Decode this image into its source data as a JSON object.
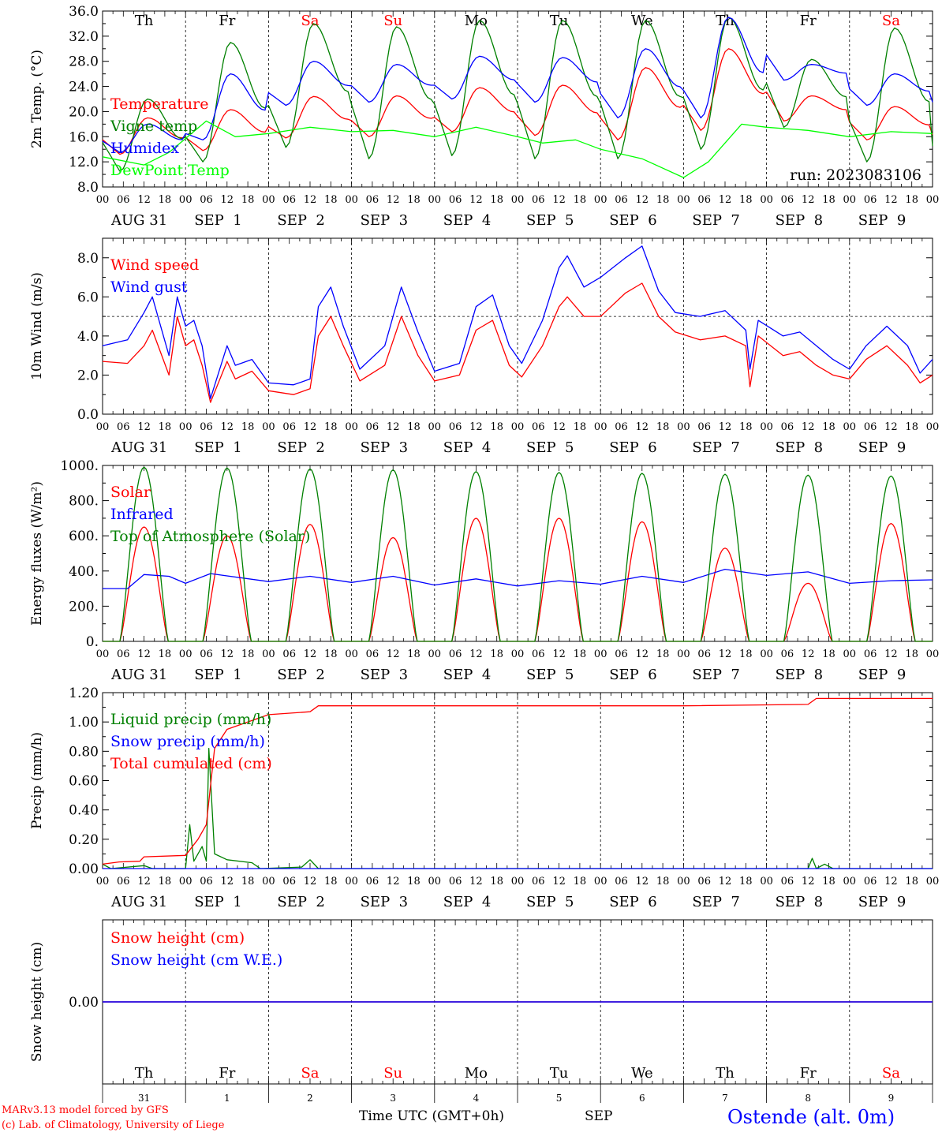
{
  "footer": {
    "credit1": "MARv3.13 model forced by GFS",
    "credit2": "(c) Lab. of Climatology, University of Liege",
    "xlabel": "Time UTC (GMT+0h)",
    "month": "SEP",
    "station": "Ostende (alt. 0m)"
  },
  "colors": {
    "red": "#ff0000",
    "green": "#008000",
    "blue": "#0000ff",
    "lime": "#00ff00",
    "purple": "#800080"
  },
  "time_axis": {
    "hour_ticks": [
      "00",
      "06",
      "12",
      "18"
    ],
    "date_labels": [
      "AUG 31",
      "SEP  1",
      "SEP  2",
      "SEP  3",
      "SEP  4",
      "SEP  5",
      "SEP  6",
      "SEP  7",
      "SEP  8",
      "SEP  9",
      "00"
    ],
    "weekdays": [
      "Th",
      "Fr",
      "Sa",
      "Su",
      "Mo",
      "Tu",
      "We",
      "Th",
      "Fr",
      "Sa"
    ],
    "weekend_flags": [
      false,
      false,
      true,
      true,
      false,
      false,
      false,
      false,
      false,
      true
    ],
    "day_numbers": [
      "31",
      "1",
      "2",
      "3",
      "4",
      "5",
      "6",
      "7",
      "8",
      "9"
    ]
  },
  "chart_data": [
    {
      "id": "temp",
      "type": "line",
      "ylabel": "2m Temp. (°C)",
      "ylim": [
        8,
        36
      ],
      "yticks": [
        "36.0",
        "32.0",
        "28.0",
        "24.0",
        "20.0",
        "16.0",
        "12.0",
        "8.0"
      ],
      "run_label": "run: 2023083106",
      "legend": [
        "Temperature",
        "Vigne temp",
        "Humidex",
        "DewPoint Temp"
      ],
      "series": [
        {
          "name": "Temperature",
          "color": "red",
          "mode": "sin",
          "min": [
            13.2,
            13.8,
            15.8,
            16.0,
            16.8,
            16.2,
            15.5,
            17.0,
            18.5,
            15.5
          ],
          "max": [
            19,
            20.3,
            22.4,
            22.5,
            23.8,
            24.2,
            27.0,
            30.0,
            22.5,
            20.8
          ],
          "end": 16.3
        },
        {
          "name": "Vigne temp",
          "color": "green",
          "mode": "sin",
          "min": [
            10.5,
            12.0,
            14.3,
            12.5,
            13.0,
            12.5,
            12.5,
            14.0,
            17.5,
            12.0
          ],
          "max": [
            22,
            31.0,
            34.0,
            33.5,
            34.5,
            34.5,
            34.5,
            35.0,
            28.3,
            33.3
          ],
          "end": 14.5
        },
        {
          "name": "Humidex",
          "color": "blue",
          "mode": "sin",
          "min": [
            13.5,
            15.5,
            21.0,
            21.5,
            22.0,
            21.5,
            19.0,
            19.0,
            25.0,
            21.0
          ],
          "max": [
            18,
            26.0,
            28.0,
            27.5,
            28.8,
            28.6,
            30.0,
            35.0,
            27.5,
            26.0
          ],
          "end": 21.5
        },
        {
          "name": "DewPoint Temp",
          "color": "lime",
          "mode": "pts",
          "pts": [
            [
              0,
              12.8
            ],
            [
              0.5,
              11.5
            ],
            [
              0.8,
              13.5
            ],
            [
              1.25,
              18.5
            ],
            [
              1.6,
              16.0
            ],
            [
              2.0,
              16.5
            ],
            [
              2.5,
              17.5
            ],
            [
              3.0,
              16.8
            ],
            [
              3.5,
              17.0
            ],
            [
              4.0,
              16.0
            ],
            [
              4.5,
              17.5
            ],
            [
              5.0,
              16.0
            ],
            [
              5.3,
              15.0
            ],
            [
              5.7,
              15.5
            ],
            [
              6.0,
              14.0
            ],
            [
              6.5,
              12.5
            ],
            [
              7.0,
              9.5
            ],
            [
              7.3,
              12.0
            ],
            [
              7.7,
              18.0
            ],
            [
              8.0,
              17.5
            ],
            [
              8.5,
              17.0
            ],
            [
              9.0,
              16.0
            ],
            [
              9.5,
              16.8
            ],
            [
              10.0,
              16.5
            ]
          ]
        }
      ]
    },
    {
      "id": "wind",
      "type": "line",
      "ylabel": "10m Wind (m/s)",
      "ylim": [
        0,
        9
      ],
      "yticks": [
        "8.0",
        "6.0",
        "4.0",
        "2.0",
        "0.0"
      ],
      "legend": [
        "Wind speed",
        "Wind gust"
      ],
      "reference_line": 5,
      "series": [
        {
          "name": "Wind speed",
          "color": "red",
          "mode": "pts",
          "pts": [
            [
              0,
              2.7
            ],
            [
              0.3,
              2.6
            ],
            [
              0.5,
              3.5
            ],
            [
              0.6,
              4.3
            ],
            [
              0.8,
              2.0
            ],
            [
              0.9,
              5.0
            ],
            [
              1.0,
              3.5
            ],
            [
              1.1,
              3.8
            ],
            [
              1.2,
              2.5
            ],
            [
              1.3,
              0.6
            ],
            [
              1.5,
              2.7
            ],
            [
              1.6,
              1.8
            ],
            [
              1.8,
              2.2
            ],
            [
              2.0,
              1.2
            ],
            [
              2.3,
              1.0
            ],
            [
              2.5,
              1.3
            ],
            [
              2.6,
              4.0
            ],
            [
              2.75,
              5.0
            ],
            [
              2.9,
              3.5
            ],
            [
              3.1,
              1.7
            ],
            [
              3.4,
              2.5
            ],
            [
              3.6,
              5.0
            ],
            [
              3.8,
              3.0
            ],
            [
              4.0,
              1.7
            ],
            [
              4.3,
              2.0
            ],
            [
              4.5,
              4.3
            ],
            [
              4.7,
              4.8
            ],
            [
              4.9,
              2.5
            ],
            [
              5.05,
              1.9
            ],
            [
              5.3,
              3.5
            ],
            [
              5.5,
              5.5
            ],
            [
              5.6,
              6.0
            ],
            [
              5.8,
              5.0
            ],
            [
              6.0,
              5.0
            ],
            [
              6.3,
              6.2
            ],
            [
              6.5,
              6.7
            ],
            [
              6.7,
              5.0
            ],
            [
              6.9,
              4.2
            ],
            [
              7.2,
              3.8
            ],
            [
              7.5,
              4.0
            ],
            [
              7.75,
              3.5
            ],
            [
              7.8,
              1.4
            ],
            [
              7.9,
              4.0
            ],
            [
              8.2,
              3.0
            ],
            [
              8.4,
              3.2
            ],
            [
              8.6,
              2.5
            ],
            [
              8.8,
              2.0
            ],
            [
              9.0,
              1.8
            ],
            [
              9.2,
              2.8
            ],
            [
              9.45,
              3.5
            ],
            [
              9.7,
              2.5
            ],
            [
              9.85,
              1.6
            ],
            [
              10.0,
              2.0
            ]
          ]
        },
        {
          "name": "Wind gust",
          "color": "blue",
          "mode": "pts",
          "pts": [
            [
              0,
              3.5
            ],
            [
              0.3,
              3.8
            ],
            [
              0.5,
              5.2
            ],
            [
              0.6,
              6.0
            ],
            [
              0.8,
              3.0
            ],
            [
              0.9,
              6.0
            ],
            [
              1.0,
              4.5
            ],
            [
              1.1,
              4.8
            ],
            [
              1.2,
              3.5
            ],
            [
              1.3,
              0.8
            ],
            [
              1.5,
              3.5
            ],
            [
              1.6,
              2.5
            ],
            [
              1.8,
              2.8
            ],
            [
              2.0,
              1.6
            ],
            [
              2.3,
              1.5
            ],
            [
              2.5,
              1.8
            ],
            [
              2.6,
              5.5
            ],
            [
              2.75,
              6.5
            ],
            [
              2.9,
              4.5
            ],
            [
              3.1,
              2.3
            ],
            [
              3.4,
              3.5
            ],
            [
              3.6,
              6.5
            ],
            [
              3.8,
              4.2
            ],
            [
              4.0,
              2.2
            ],
            [
              4.3,
              2.6
            ],
            [
              4.5,
              5.5
            ],
            [
              4.7,
              6.1
            ],
            [
              4.9,
              3.5
            ],
            [
              5.05,
              2.6
            ],
            [
              5.3,
              4.8
            ],
            [
              5.5,
              7.5
            ],
            [
              5.6,
              8.1
            ],
            [
              5.8,
              6.5
            ],
            [
              6.0,
              7.0
            ],
            [
              6.3,
              8.0
            ],
            [
              6.5,
              8.6
            ],
            [
              6.7,
              6.3
            ],
            [
              6.9,
              5.2
            ],
            [
              7.2,
              5.0
            ],
            [
              7.5,
              5.3
            ],
            [
              7.75,
              4.3
            ],
            [
              7.8,
              2.3
            ],
            [
              7.9,
              4.8
            ],
            [
              8.2,
              4.0
            ],
            [
              8.4,
              4.2
            ],
            [
              8.6,
              3.5
            ],
            [
              8.8,
              2.8
            ],
            [
              9.0,
              2.3
            ],
            [
              9.2,
              3.5
            ],
            [
              9.45,
              4.5
            ],
            [
              9.7,
              3.5
            ],
            [
              9.85,
              2.1
            ],
            [
              10.0,
              2.8
            ]
          ]
        }
      ]
    },
    {
      "id": "energy",
      "type": "line",
      "ylabel": "Energy fluxes (W/m²)",
      "ylim": [
        0,
        1000
      ],
      "yticks": [
        "1000.",
        "800.",
        "600.",
        "400.",
        "200.",
        "0."
      ],
      "legend": [
        "Solar",
        "Infrared",
        "Top of Atmosphere (Solar)"
      ],
      "series": [
        {
          "name": "Solar",
          "color": "red",
          "mode": "bell",
          "peaks": [
            650,
            600,
            665,
            590,
            700,
            700,
            680,
            530,
            330,
            670
          ]
        },
        {
          "name": "Infrared",
          "color": "blue",
          "mode": "pts",
          "pts": [
            [
              0,
              300
            ],
            [
              0.3,
              300
            ],
            [
              0.5,
              380
            ],
            [
              0.8,
              370
            ],
            [
              1.0,
              330
            ],
            [
              1.3,
              385
            ],
            [
              2.0,
              340
            ],
            [
              2.5,
              370
            ],
            [
              3.0,
              335
            ],
            [
              3.5,
              370
            ],
            [
              4.0,
              320
            ],
            [
              4.5,
              355
            ],
            [
              5.0,
              315
            ],
            [
              5.5,
              345
            ],
            [
              6.0,
              325
            ],
            [
              6.5,
              370
            ],
            [
              7.0,
              335
            ],
            [
              7.5,
              410
            ],
            [
              8.0,
              375
            ],
            [
              8.5,
              395
            ],
            [
              9.0,
              330
            ],
            [
              9.5,
              345
            ],
            [
              10.0,
              350
            ]
          ]
        },
        {
          "name": "Top of Atmosphere (Solar)",
          "color": "green",
          "mode": "bell",
          "peaks": [
            990,
            985,
            980,
            975,
            965,
            960,
            955,
            950,
            945,
            940
          ]
        }
      ]
    },
    {
      "id": "precip",
      "type": "line",
      "ylabel": "Precip (mm/h)",
      "ylim": [
        0,
        1.2
      ],
      "yticks": [
        "1.20",
        "1.00",
        "0.80",
        "0.60",
        "0.40",
        "0.20",
        "0.00"
      ],
      "legend": [
        "Liquid precip (mm/h)",
        "Snow precip (mm/h)",
        "Total cumulated (cm)"
      ],
      "series": [
        {
          "name": "Liquid precip (mm/h)",
          "color": "green",
          "mode": "pts",
          "pts": [
            [
              0,
              0.03
            ],
            [
              0.1,
              0.0
            ],
            [
              0.5,
              0.02
            ],
            [
              0.6,
              0.0
            ],
            [
              1.0,
              0.0
            ],
            [
              1.05,
              0.3
            ],
            [
              1.1,
              0.05
            ],
            [
              1.2,
              0.15
            ],
            [
              1.25,
              0.05
            ],
            [
              1.28,
              0.82
            ],
            [
              1.35,
              0.1
            ],
            [
              1.5,
              0.06
            ],
            [
              1.8,
              0.04
            ],
            [
              1.9,
              0.0
            ],
            [
              2.4,
              0.01
            ],
            [
              2.5,
              0.06
            ],
            [
              2.6,
              0.0
            ],
            [
              8.5,
              0.0
            ],
            [
              8.55,
              0.07
            ],
            [
              8.6,
              0.0
            ],
            [
              8.7,
              0.03
            ],
            [
              8.8,
              0.0
            ],
            [
              10.0,
              0.0
            ]
          ]
        },
        {
          "name": "Snow precip (mm/h)",
          "color": "blue",
          "mode": "pts",
          "pts": [
            [
              0,
              0.0
            ],
            [
              10.0,
              0.0
            ]
          ]
        },
        {
          "name": "Total cumulated (cm)",
          "color": "red",
          "mode": "pts",
          "pts": [
            [
              0,
              0.03
            ],
            [
              0.2,
              0.045
            ],
            [
              0.45,
              0.05
            ],
            [
              0.5,
              0.08
            ],
            [
              1.0,
              0.09
            ],
            [
              1.15,
              0.2
            ],
            [
              1.25,
              0.3
            ],
            [
              1.35,
              0.82
            ],
            [
              1.5,
              0.95
            ],
            [
              2.0,
              1.05
            ],
            [
              2.5,
              1.07
            ],
            [
              2.6,
              1.11
            ],
            [
              3.0,
              1.11
            ],
            [
              7.0,
              1.11
            ],
            [
              8.5,
              1.12
            ],
            [
              8.6,
              1.16
            ],
            [
              10.0,
              1.16
            ]
          ]
        }
      ]
    },
    {
      "id": "snow",
      "type": "line",
      "ylabel": "Snow height (cm)",
      "ylim": [
        -1,
        1
      ],
      "yticks": [
        "0.00"
      ],
      "legend": [
        "Snow height (cm)",
        "Snow height (cm W.E.)"
      ],
      "series": [
        {
          "name": "Snow height (cm)",
          "color": "red",
          "mode": "pts",
          "pts": [
            [
              0,
              0
            ],
            [
              10,
              0
            ]
          ]
        },
        {
          "name": "Snow height (cm W.E.)",
          "color": "blue",
          "mode": "pts",
          "pts": [
            [
              0,
              0
            ],
            [
              10,
              0
            ]
          ]
        }
      ]
    }
  ]
}
